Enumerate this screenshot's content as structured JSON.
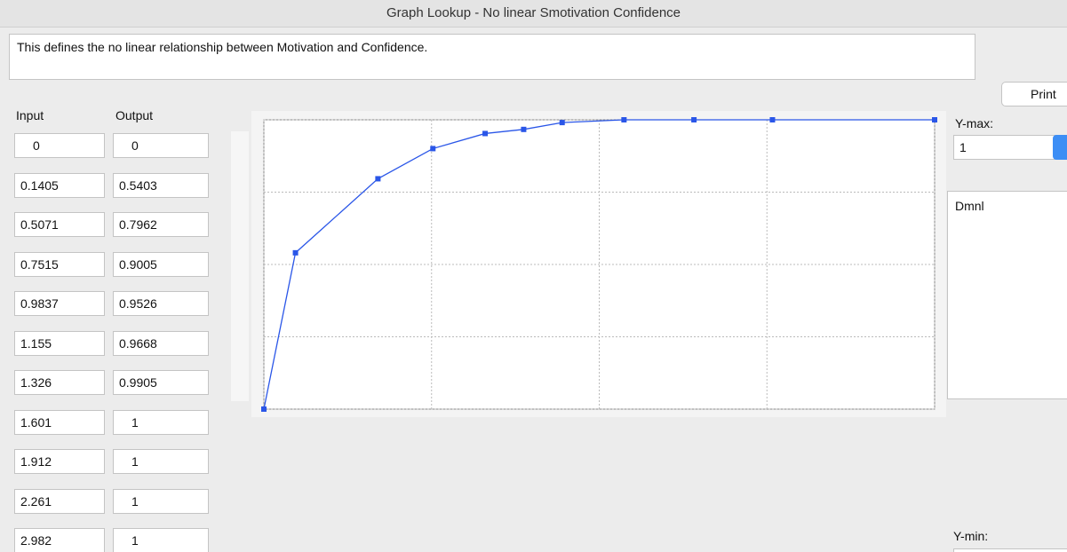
{
  "window": {
    "title": "Graph Lookup - No linear Smotivation Confidence"
  },
  "description": "This defines the no linear relationship between Motivation and Confidence.",
  "print_button": "Print",
  "table": {
    "headers": [
      "Input",
      "Output"
    ],
    "rows": [
      [
        0,
        0
      ],
      [
        0.1405,
        0.5403
      ],
      [
        0.5071,
        0.7962
      ],
      [
        0.7515,
        0.9005
      ],
      [
        0.9837,
        0.9526
      ],
      [
        1.155,
        0.9668
      ],
      [
        1.326,
        0.9905
      ],
      [
        1.601,
        1
      ],
      [
        1.912,
        1
      ],
      [
        2.261,
        1
      ],
      [
        2.982,
        1
      ]
    ]
  },
  "chart": {
    "type": "line",
    "color": "#2a56e8",
    "grid": true,
    "xlim": [
      0,
      2.982
    ],
    "xticks": [
      0,
      0.7455,
      1.491,
      2.2365,
      2.982
    ],
    "ylim": [
      0,
      1
    ],
    "yticks": [
      0,
      0.25,
      0.5,
      0.75,
      1
    ]
  },
  "ymax": {
    "label": "Y-max:",
    "value": "1"
  },
  "units": "Dmnl",
  "ymin": {
    "label": "Y-min:"
  }
}
